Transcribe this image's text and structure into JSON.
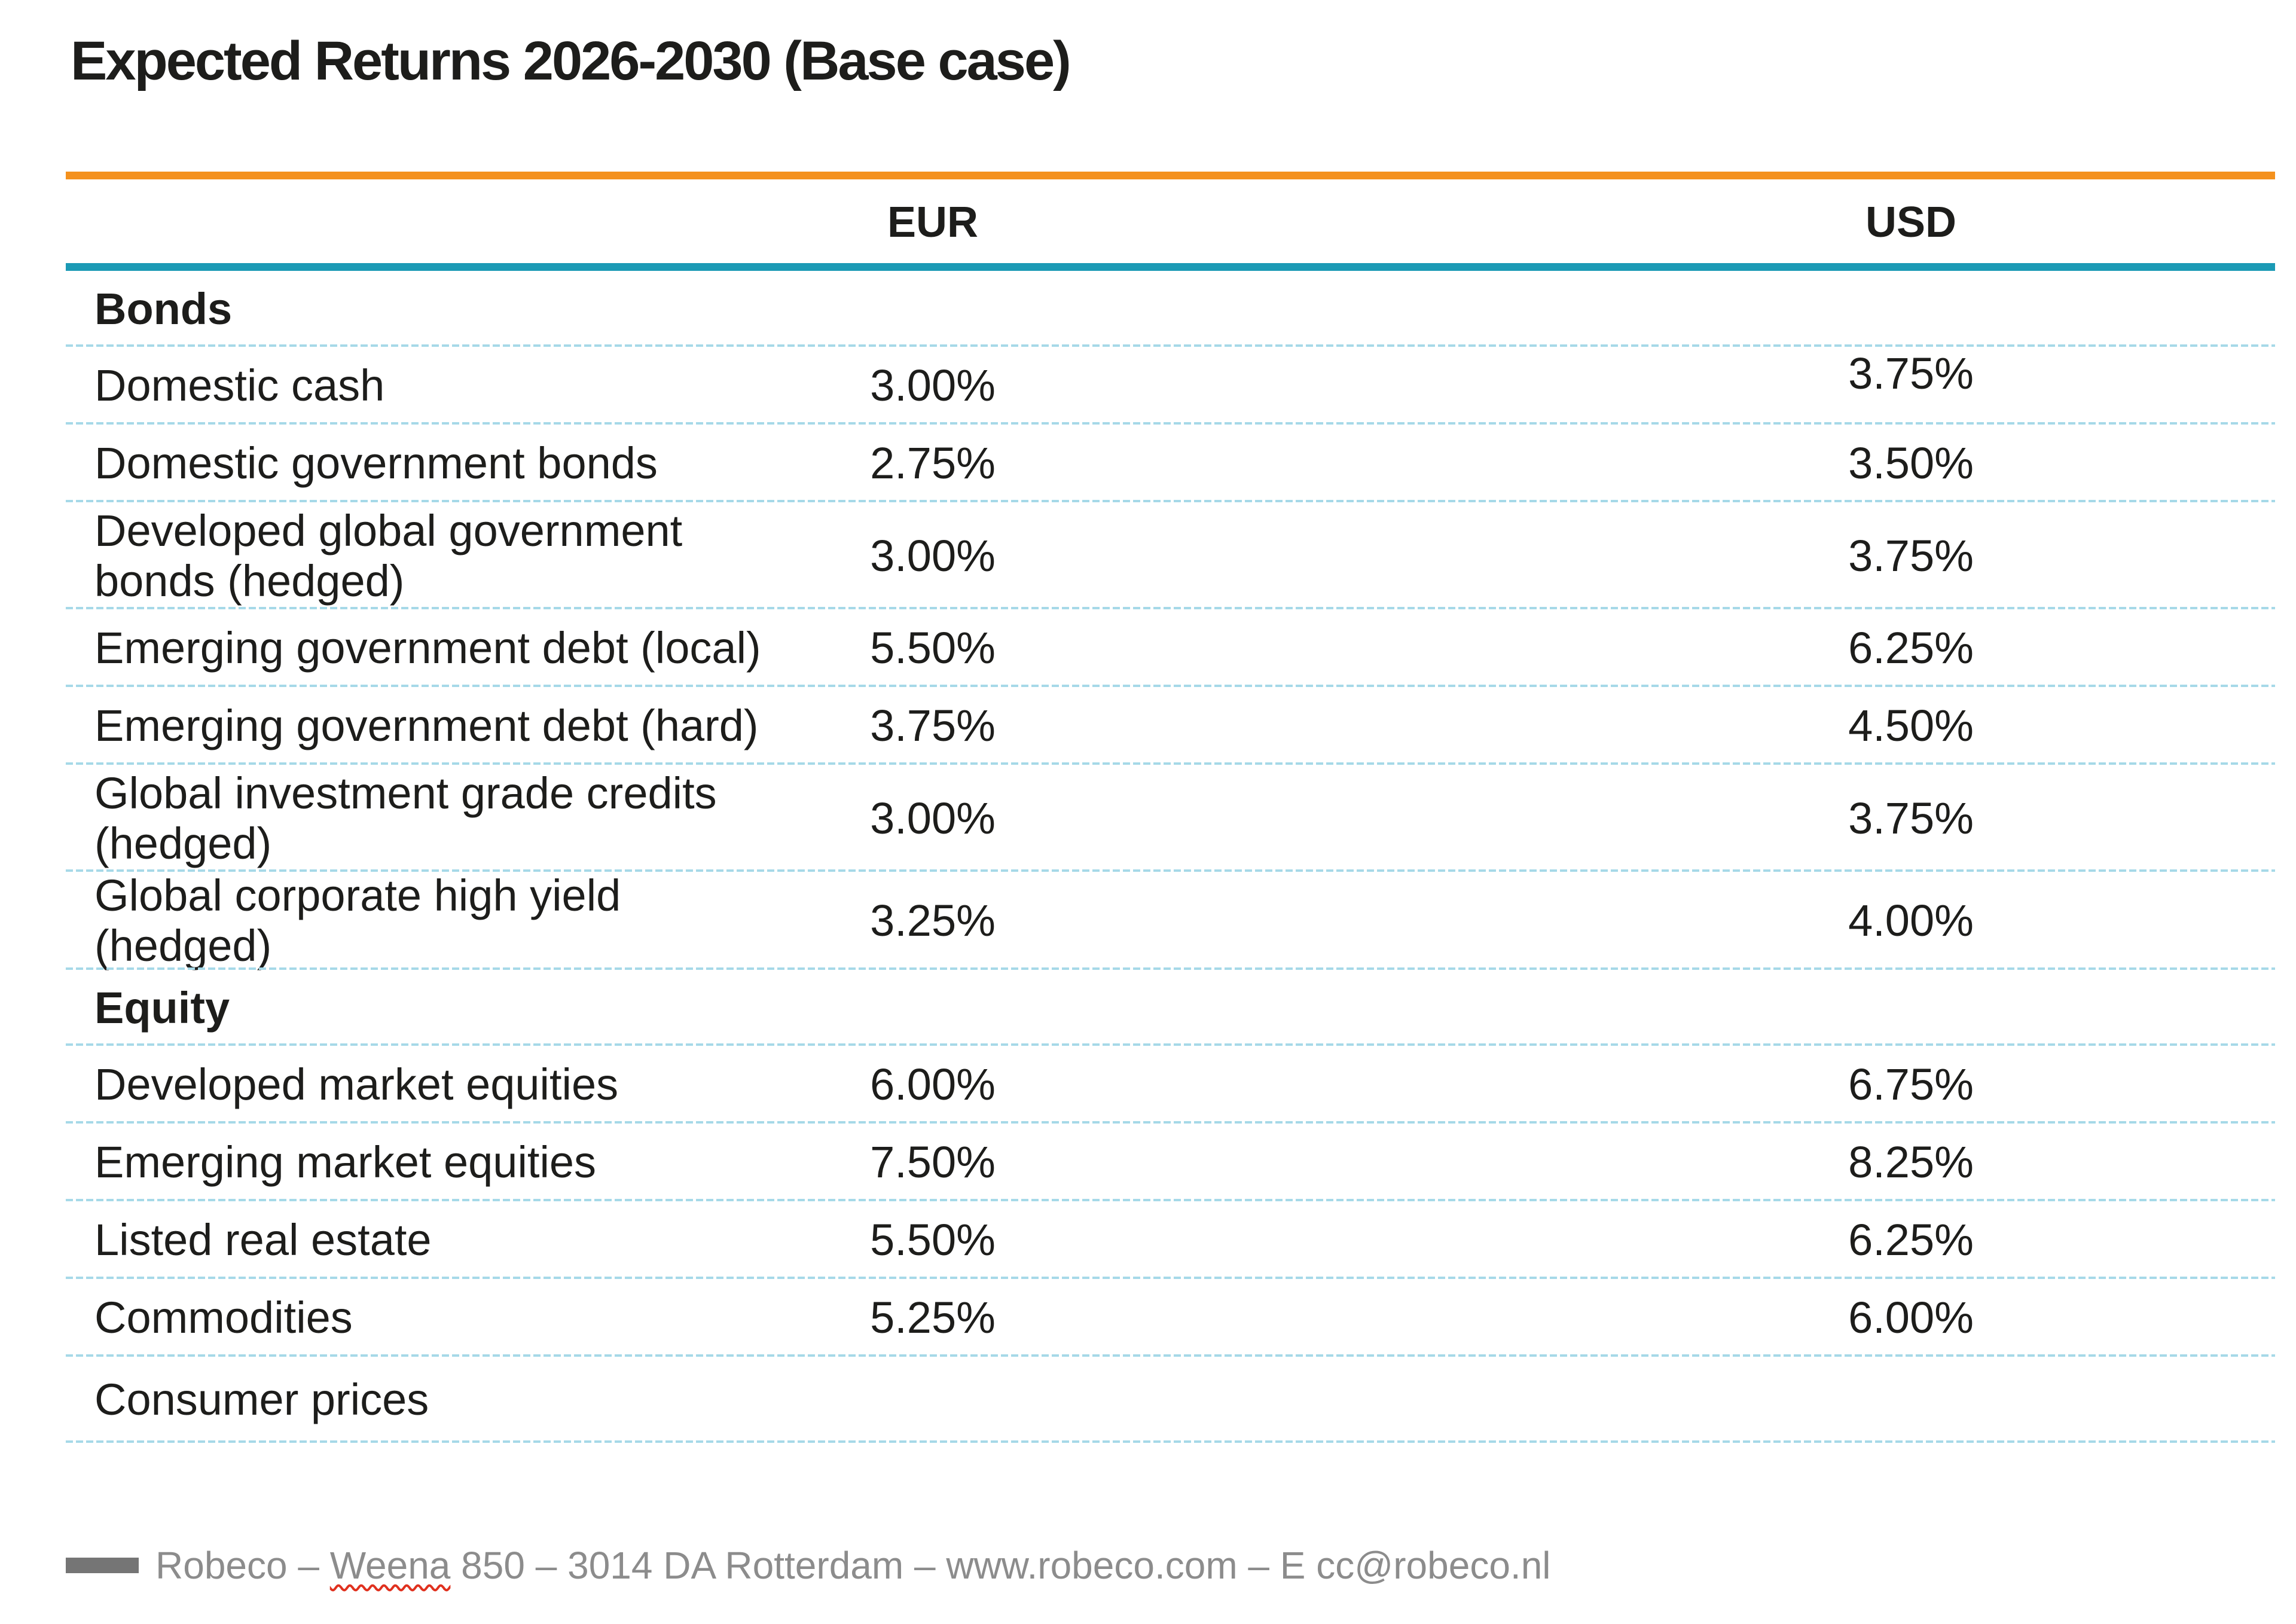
{
  "title": "Expected Returns 2026-2030 (Base case)",
  "colors": {
    "accent_orange": "#F4911E",
    "accent_teal": "#1B9AB5",
    "divider_blue": "#A6D9E8",
    "text": "#1D1D1B",
    "footer_gray": "#8C8C8C",
    "spellcheck_red": "#E0301E"
  },
  "table": {
    "columns": [
      "EUR",
      "USD"
    ],
    "rows": [
      {
        "type": "section",
        "label": "Bonds"
      },
      {
        "type": "asset",
        "label": "Domestic cash",
        "eur": "3.00%",
        "usd": "3.75%"
      },
      {
        "type": "asset",
        "label": "Domestic government bonds",
        "eur": "2.75%",
        "usd": "3.50%"
      },
      {
        "type": "asset",
        "label": "Developed global government\nbonds (hedged)",
        "eur": "3.00%",
        "usd": "3.75%"
      },
      {
        "type": "asset",
        "label": "Emerging government debt (local)",
        "eur": "5.50%",
        "usd": "6.25%"
      },
      {
        "type": "asset",
        "label": "Emerging government debt (hard)",
        "eur": "3.75%",
        "usd": "4.50%"
      },
      {
        "type": "asset",
        "label": "Global investment grade credits\n(hedged)",
        "eur": "3.00%",
        "usd": "3.75%"
      },
      {
        "type": "asset",
        "label": "Global corporate high yield\n(hedged)",
        "eur": "3.25%",
        "usd": "4.00%"
      },
      {
        "type": "section",
        "label": "Equity"
      },
      {
        "type": "asset",
        "label": "Developed market equities",
        "eur": "6.00%",
        "usd": "6.75%"
      },
      {
        "type": "asset",
        "label": "Emerging market equities",
        "eur": "7.50%",
        "usd": "8.25%"
      },
      {
        "type": "asset",
        "label": "Listed real estate",
        "eur": "5.50%",
        "usd": "6.25%"
      },
      {
        "type": "asset",
        "label": "Commodities",
        "eur": "5.25%",
        "usd": "6.00%"
      },
      {
        "type": "section",
        "label": "Consumer prices"
      }
    ]
  },
  "footer": {
    "prefix": "Robeco – ",
    "misspelled_word": "Weena",
    "suffix": " 850 – 3014 DA Rotterdam – www.robeco.com – E cc@robeco.nl"
  }
}
